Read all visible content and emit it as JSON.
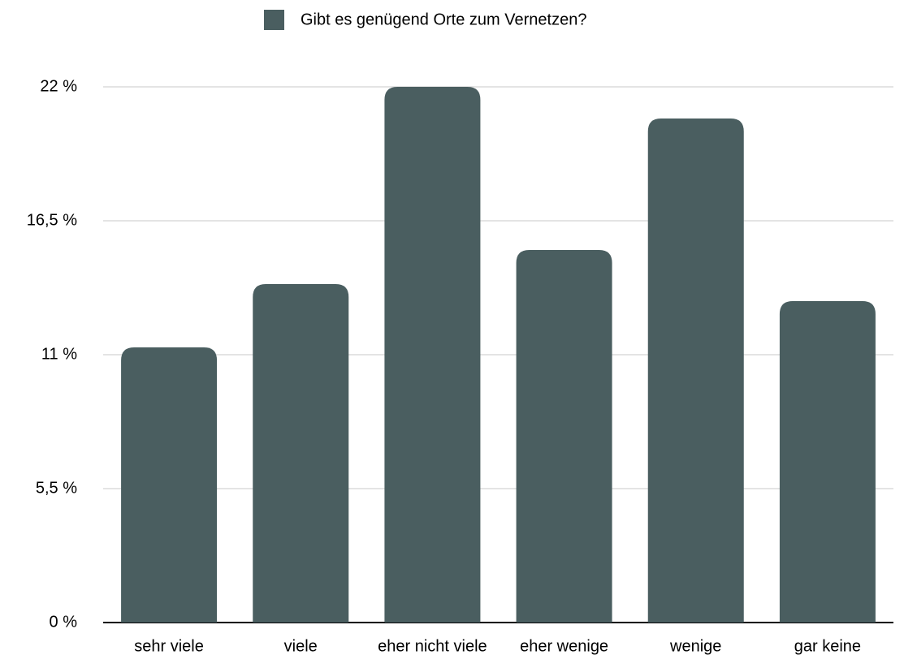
{
  "chart_data": {
    "type": "bar",
    "legend": "Gibt es genügend Orte zum Vernetzen?",
    "categories": [
      "sehr viele",
      "viele",
      "eher nicht viele",
      "eher wenige",
      "wenige",
      "gar keine"
    ],
    "values": [
      11.3,
      13.9,
      22.0,
      15.3,
      20.7,
      13.2
    ],
    "color": "#4a5e60",
    "ylim": [
      0,
      22
    ],
    "yticks": [
      {
        "value": 0,
        "label": "0 %"
      },
      {
        "value": 5.5,
        "label": "5,5 %"
      },
      {
        "value": 11,
        "label": "11 %"
      },
      {
        "value": 16.5,
        "label": "16,5 %"
      },
      {
        "value": 22,
        "label": "22 %"
      }
    ],
    "grid": true
  }
}
